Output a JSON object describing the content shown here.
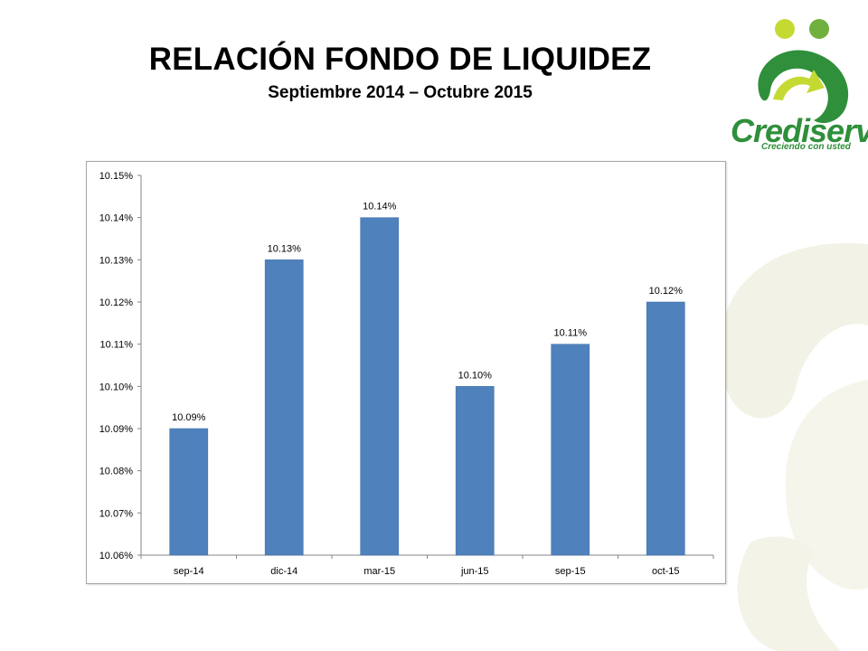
{
  "header": {
    "title": "RELACIÓN FONDO DE LIQUIDEZ",
    "subtitle": "Septiembre 2014 – Octubre  2015"
  },
  "logo": {
    "text": "Crediservir",
    "tagline": "Creciendo con usted",
    "colors": {
      "green": "#2f8f3a",
      "light_green": "#8dc63f",
      "yellow": "#d4e157"
    }
  },
  "chart_data": {
    "type": "bar",
    "categories": [
      "sep-14",
      "dic-14",
      "mar-15",
      "jun-15",
      "sep-15",
      "oct-15"
    ],
    "values": [
      10.09,
      10.13,
      10.14,
      10.1,
      10.11,
      10.12
    ],
    "data_labels": [
      "10.09%",
      "10.13%",
      "10.14%",
      "10.10%",
      "10.11%",
      "10.12%"
    ],
    "y_ticks": [
      "10.06%",
      "10.07%",
      "10.08%",
      "10.09%",
      "10.10%",
      "10.11%",
      "10.12%",
      "10.13%",
      "10.14%",
      "10.15%"
    ],
    "ylim": [
      10.06,
      10.15
    ],
    "unit": "%",
    "bar_color": "#4f81bd",
    "grid": false,
    "legend": "none"
  }
}
